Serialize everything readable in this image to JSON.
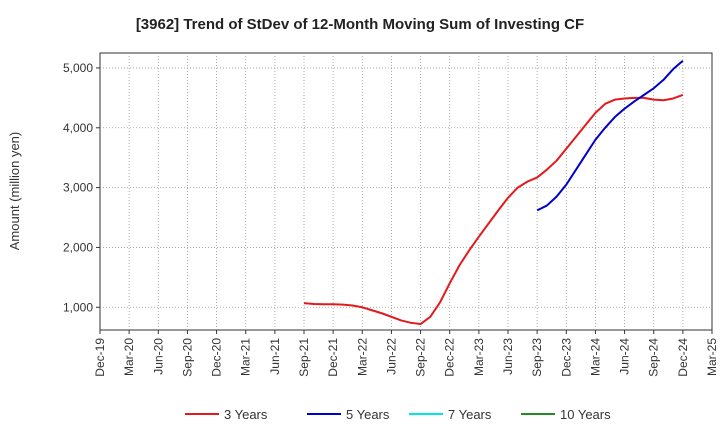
{
  "chart_data": {
    "type": "line",
    "title": "[3962]  Trend of StDev of 12-Month Moving Sum of Investing CF",
    "ylabel": "Amount (million yen)",
    "xlabel": "",
    "x_ticks": [
      "Dec-19",
      "Mar-20",
      "Jun-20",
      "Sep-20",
      "Dec-20",
      "Mar-21",
      "Jun-21",
      "Sep-21",
      "Dec-21",
      "Mar-22",
      "Jun-22",
      "Sep-22",
      "Dec-22",
      "Mar-23",
      "Jun-23",
      "Sep-23",
      "Dec-23",
      "Mar-24",
      "Jun-24",
      "Sep-24",
      "Dec-24",
      "Mar-25"
    ],
    "y_ticks": [
      1000,
      2000,
      3000,
      4000,
      5000
    ],
    "y_tick_labels": [
      "1,000",
      "2,000",
      "3,000",
      "4,000",
      "5,000"
    ],
    "ylim": [
      620,
      5250
    ],
    "grid": true,
    "legend_position": "bottom",
    "series": [
      {
        "name": "3 Years",
        "color": "#e31a1c",
        "x": [
          "Sep-21",
          "Oct-21",
          "Nov-21",
          "Dec-21",
          "Jan-22",
          "Feb-22",
          "Mar-22",
          "Apr-22",
          "May-22",
          "Jun-22",
          "Jul-22",
          "Aug-22",
          "Sep-22",
          "Oct-22",
          "Nov-22",
          "Dec-22",
          "Jan-23",
          "Feb-23",
          "Mar-23",
          "Apr-23",
          "May-23",
          "Jun-23",
          "Jul-23",
          "Aug-23",
          "Sep-23",
          "Oct-23",
          "Nov-23",
          "Dec-23",
          "Jan-24",
          "Feb-24",
          "Mar-24",
          "Apr-24",
          "May-24",
          "Jun-24",
          "Jul-24",
          "Aug-24",
          "Sep-24",
          "Oct-24",
          "Nov-24",
          "Dec-24"
        ],
        "values": [
          1070,
          1055,
          1050,
          1050,
          1045,
          1030,
          1000,
          950,
          900,
          840,
          780,
          740,
          720,
          840,
          1080,
          1400,
          1700,
          1950,
          2180,
          2400,
          2620,
          2830,
          3000,
          3100,
          3170,
          3300,
          3450,
          3650,
          3850,
          4050,
          4250,
          4400,
          4470,
          4490,
          4500,
          4500,
          4470,
          4460,
          4490,
          4550
        ]
      },
      {
        "name": "5 Years",
        "color": "#0000cc",
        "x": [
          "Sep-23",
          "Oct-23",
          "Nov-23",
          "Dec-23",
          "Jan-24",
          "Feb-24",
          "Mar-24",
          "Apr-24",
          "May-24",
          "Jun-24",
          "Jul-24",
          "Aug-24",
          "Sep-24",
          "Oct-24",
          "Nov-24",
          "Dec-24"
        ],
        "values": [
          2620,
          2700,
          2850,
          3050,
          3300,
          3550,
          3800,
          4000,
          4180,
          4320,
          4440,
          4550,
          4660,
          4800,
          4980,
          5120
        ]
      },
      {
        "name": "7 Years",
        "color": "#00e5ee",
        "x": [],
        "values": []
      },
      {
        "name": "10 Years",
        "color": "#228b22",
        "x": [],
        "values": []
      }
    ]
  }
}
